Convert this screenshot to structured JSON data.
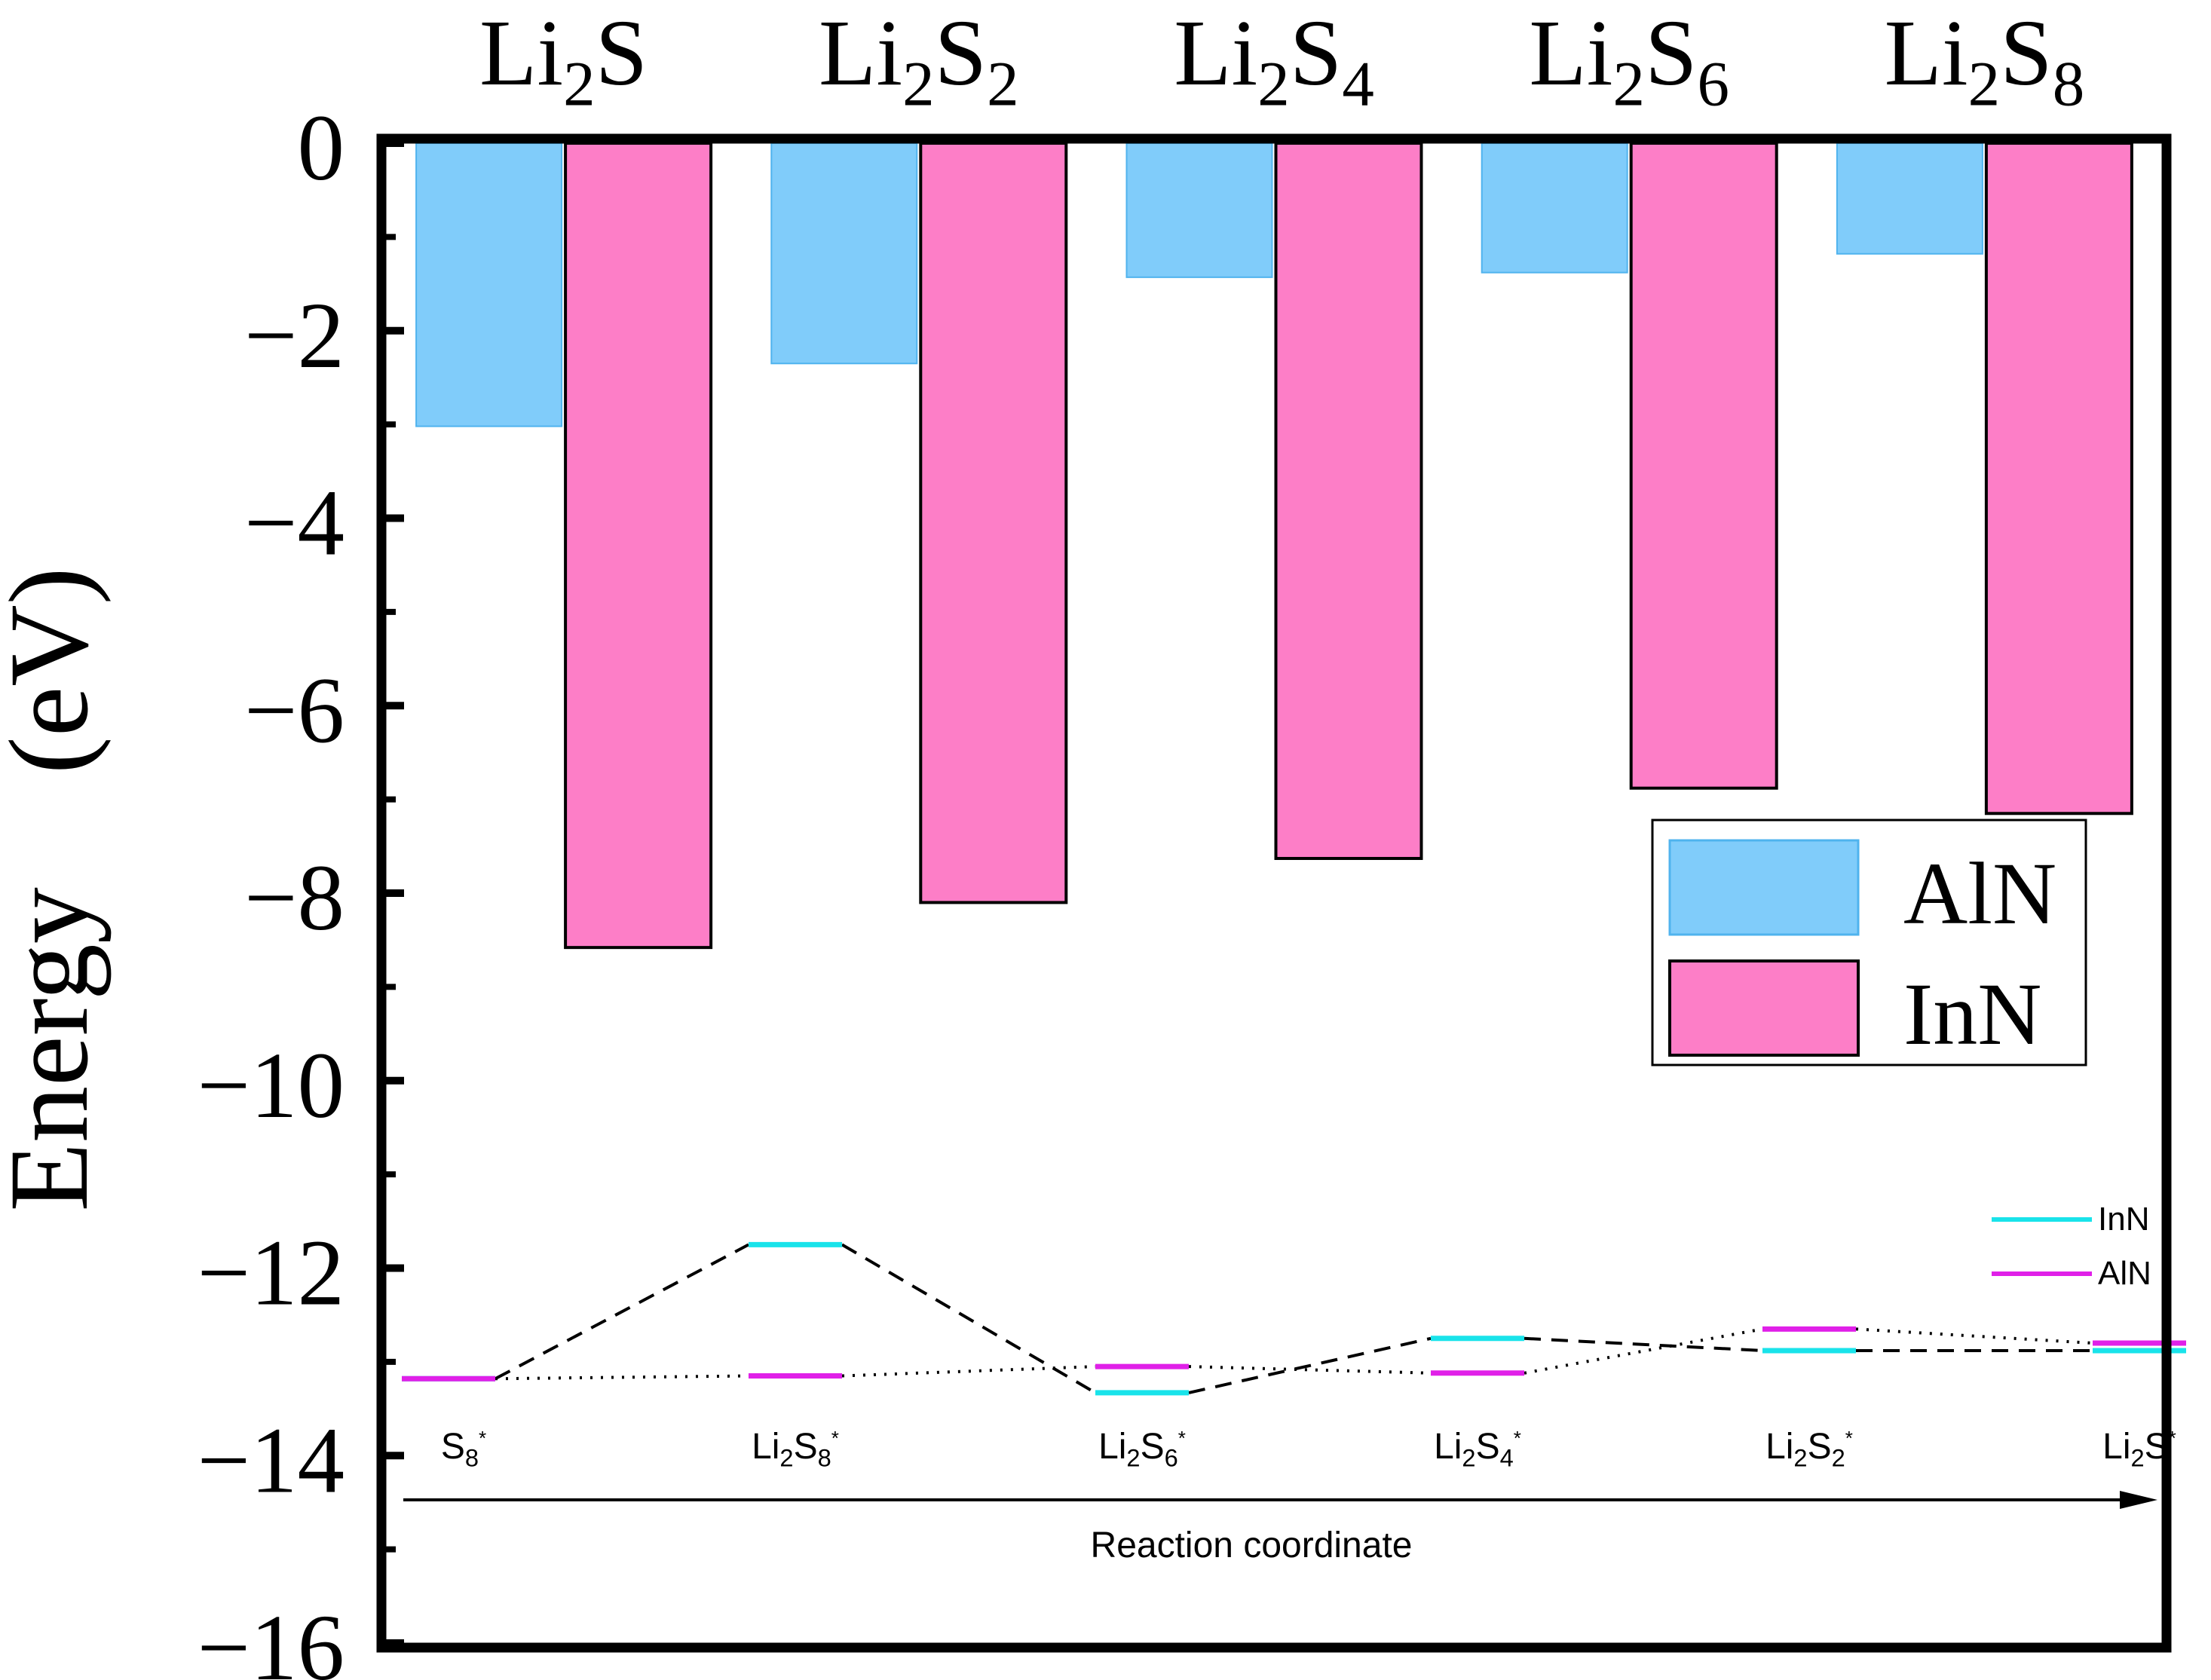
{
  "chart_data": [
    {
      "type": "bar",
      "title": "",
      "xlabel": "",
      "ylabel": "Energy　(eV)",
      "ylim": [
        -16,
        0
      ],
      "yticks": [
        0,
        -2,
        -4,
        -6,
        -8,
        -10,
        -12,
        -14,
        -16
      ],
      "ytick_labels": [
        "0",
        "−2",
        "−4",
        "−6",
        "−8",
        "−10",
        "−12",
        "−14",
        "−16"
      ],
      "categories": [
        {
          "base": "Li",
          "sub1": "2",
          "mid": "S",
          "sub2": ""
        },
        {
          "base": "Li",
          "sub1": "2",
          "mid": "S",
          "sub2": "2"
        },
        {
          "base": "Li",
          "sub1": "2",
          "mid": "S",
          "sub2": "4"
        },
        {
          "base": "Li",
          "sub1": "2",
          "mid": "S",
          "sub2": "6"
        },
        {
          "base": "Li",
          "sub1": "2",
          "mid": "S",
          "sub2": "8"
        }
      ],
      "series": [
        {
          "name": "AlN",
          "color": "#80ccfa",
          "edge": "#4fb3ee",
          "values": [
            -3.02,
            -2.35,
            -1.43,
            -1.38,
            -1.18
          ]
        },
        {
          "name": "InN",
          "color": "#fd7ec7",
          "edge": "#000000",
          "values": [
            -8.58,
            -8.1,
            -7.63,
            -6.88,
            -7.15
          ]
        }
      ],
      "legend": {
        "position": "right",
        "entries": [
          "AlN",
          "InN"
        ]
      }
    },
    {
      "type": "line",
      "title": "",
      "xlabel": "Reaction coordinate",
      "ylabel": "",
      "steps": [
        {
          "base": "S",
          "sub1": "8",
          "mid": "",
          "sub2": "",
          "star": "*"
        },
        {
          "base": "Li",
          "sub1": "2",
          "mid": "S",
          "sub2": "8",
          "star": "*"
        },
        {
          "base": "Li",
          "sub1": "2",
          "mid": "S",
          "sub2": "6",
          "star": "*"
        },
        {
          "base": "Li",
          "sub1": "2",
          "mid": "S",
          "sub2": "4",
          "star": "*"
        },
        {
          "base": "Li",
          "sub1": "2",
          "mid": "S",
          "sub2": "2",
          "star": "*"
        },
        {
          "base": "Li",
          "sub1": "2",
          "mid": "S",
          "sub2": "",
          "star": "*"
        }
      ],
      "series": [
        {
          "name": "InN",
          "color": "#19e3ea",
          "line_style": "dashed",
          "values": [
            -13.18,
            -11.75,
            -13.33,
            -12.75,
            -12.88,
            -12.88
          ]
        },
        {
          "name": "AlN",
          "color": "#e020e8",
          "line_style": "dotted",
          "values": [
            -13.18,
            -13.15,
            -13.05,
            -13.12,
            -12.65,
            -12.8
          ]
        }
      ],
      "legend": {
        "position": "top-right",
        "entries": [
          "InN",
          "AlN"
        ]
      }
    }
  ]
}
